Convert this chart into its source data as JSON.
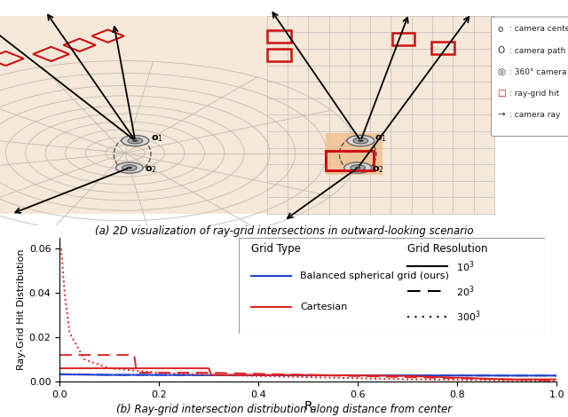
{
  "fig_width": 6.4,
  "fig_height": 4.7,
  "dpi": 100,
  "panel_a_title": "(a) 2D visualization of ray-grid intersections in outward-looking scenario",
  "panel_b_title": "(b) Ray-grid intersection distribution along distance from center",
  "ylabel": "Ray-Grid Hit Distribution",
  "xlabel": "R",
  "ylim": [
    0,
    0.065
  ],
  "xlim": [
    0.0,
    1.0
  ],
  "yticks": [
    0.0,
    0.02,
    0.04,
    0.06
  ],
  "xticks": [
    0.0,
    0.2,
    0.4,
    0.6,
    0.8,
    1.0
  ],
  "bg_color": "#f5e8d8",
  "grid_color": "#bbbbbb",
  "blue_color": "#2244cc",
  "red_color": "#dd2222",
  "series": {
    "blue_solid": {
      "x": [
        0.0,
        0.05,
        0.1,
        0.2,
        0.3,
        0.5,
        0.7,
        0.9,
        1.0
      ],
      "y": [
        0.0032,
        0.0031,
        0.003,
        0.003,
        0.0029,
        0.0028,
        0.0028,
        0.0027,
        0.0027
      ]
    },
    "blue_dashed": {
      "x": [
        0.0,
        0.05,
        0.1,
        0.2,
        0.3,
        0.5,
        0.7,
        0.9,
        1.0
      ],
      "y": [
        0.0033,
        0.0032,
        0.003,
        0.003,
        0.0029,
        0.0028,
        0.0028,
        0.0027,
        0.0027
      ]
    },
    "blue_dotted": {
      "x": [
        0.0,
        0.05,
        0.1,
        0.2,
        0.3,
        0.5,
        0.7,
        0.9,
        1.0
      ],
      "y": [
        0.0034,
        0.0033,
        0.003,
        0.003,
        0.0029,
        0.0028,
        0.0028,
        0.0027,
        0.0027
      ]
    },
    "red_solid": {
      "x": [
        0.0,
        0.01,
        0.05,
        0.1,
        0.2,
        0.3,
        0.305,
        0.32,
        0.5,
        0.7,
        0.9,
        1.0
      ],
      "y": [
        0.006,
        0.006,
        0.006,
        0.006,
        0.006,
        0.006,
        0.003,
        0.003,
        0.003,
        0.0025,
        0.001,
        0.001
      ]
    },
    "red_dashed": {
      "x": [
        0.0,
        0.005,
        0.01,
        0.05,
        0.1,
        0.15,
        0.155,
        0.3,
        0.5,
        0.7,
        0.9,
        1.0
      ],
      "y": [
        0.012,
        0.012,
        0.012,
        0.012,
        0.012,
        0.012,
        0.004,
        0.004,
        0.003,
        0.002,
        0.001,
        0.0005
      ]
    },
    "red_dotted": {
      "x": [
        0.0,
        0.003,
        0.005,
        0.01,
        0.02,
        0.05,
        0.1,
        0.2,
        0.3,
        0.5,
        0.7,
        0.9,
        1.0
      ],
      "y": [
        0.062,
        0.06,
        0.055,
        0.04,
        0.022,
        0.01,
        0.006,
        0.004,
        0.003,
        0.002,
        0.001,
        0.0005,
        0.0003
      ]
    }
  }
}
